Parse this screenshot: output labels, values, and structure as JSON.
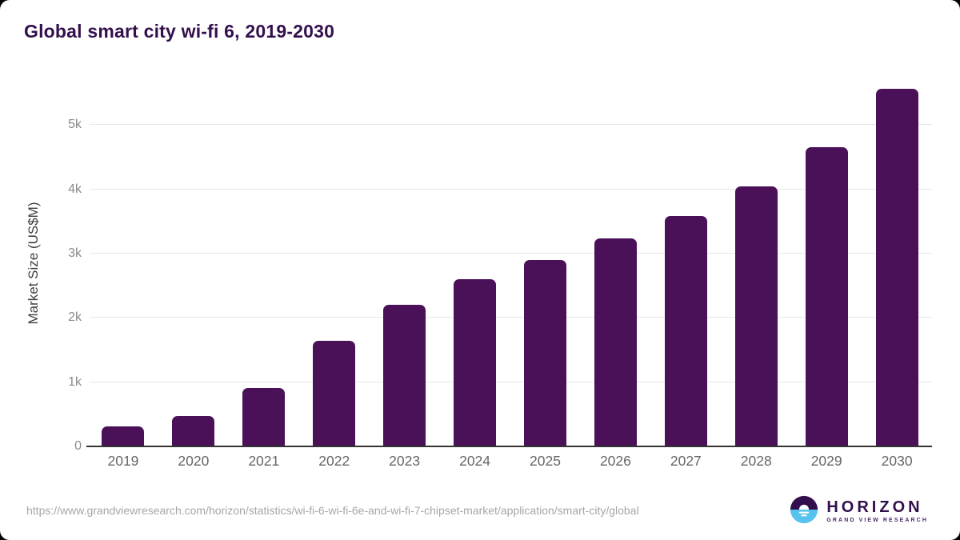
{
  "chart_data": {
    "type": "bar",
    "title": "Global smart city wi-fi 6, 2019-2030",
    "categories": [
      "2019",
      "2020",
      "2021",
      "2022",
      "2023",
      "2024",
      "2025",
      "2026",
      "2027",
      "2028",
      "2029",
      "2030"
    ],
    "values": [
      310,
      475,
      910,
      1640,
      2200,
      2600,
      2905,
      3230,
      3590,
      4040,
      4650,
      5565
    ],
    "xlabel": "",
    "ylabel": "Market Size (US$M)",
    "ylim": [
      0,
      5700
    ],
    "yticks": [
      {
        "value": 0,
        "label": "0"
      },
      {
        "value": 1000,
        "label": "1k"
      },
      {
        "value": 2000,
        "label": "2k"
      },
      {
        "value": 3000,
        "label": "3k"
      },
      {
        "value": 4000,
        "label": "4k"
      },
      {
        "value": 5000,
        "label": "5k"
      }
    ],
    "grid": true,
    "legend": "none",
    "bar_color": "#4a1158"
  },
  "footer": {
    "source_url": "https://www.grandviewresearch.com/horizon/statistics/wi-fi-6-wi-fi-6e-and-wi-fi-7-chipset-market/application/smart-city/global",
    "logo": {
      "name": "HORIZON",
      "tagline": "GRAND VIEW RESEARCH",
      "circle_top_color": "#33104d",
      "circle_bottom_color": "#56c2ed"
    }
  },
  "colors": {
    "title": "#33104d",
    "bar": "#4a1158",
    "gridline": "#e7e7e7",
    "axis_line": "#333333",
    "tick_label": "#8a8a8a",
    "x_label": "#666666",
    "url_text": "#a6a6a6",
    "background": "#ffffff"
  }
}
